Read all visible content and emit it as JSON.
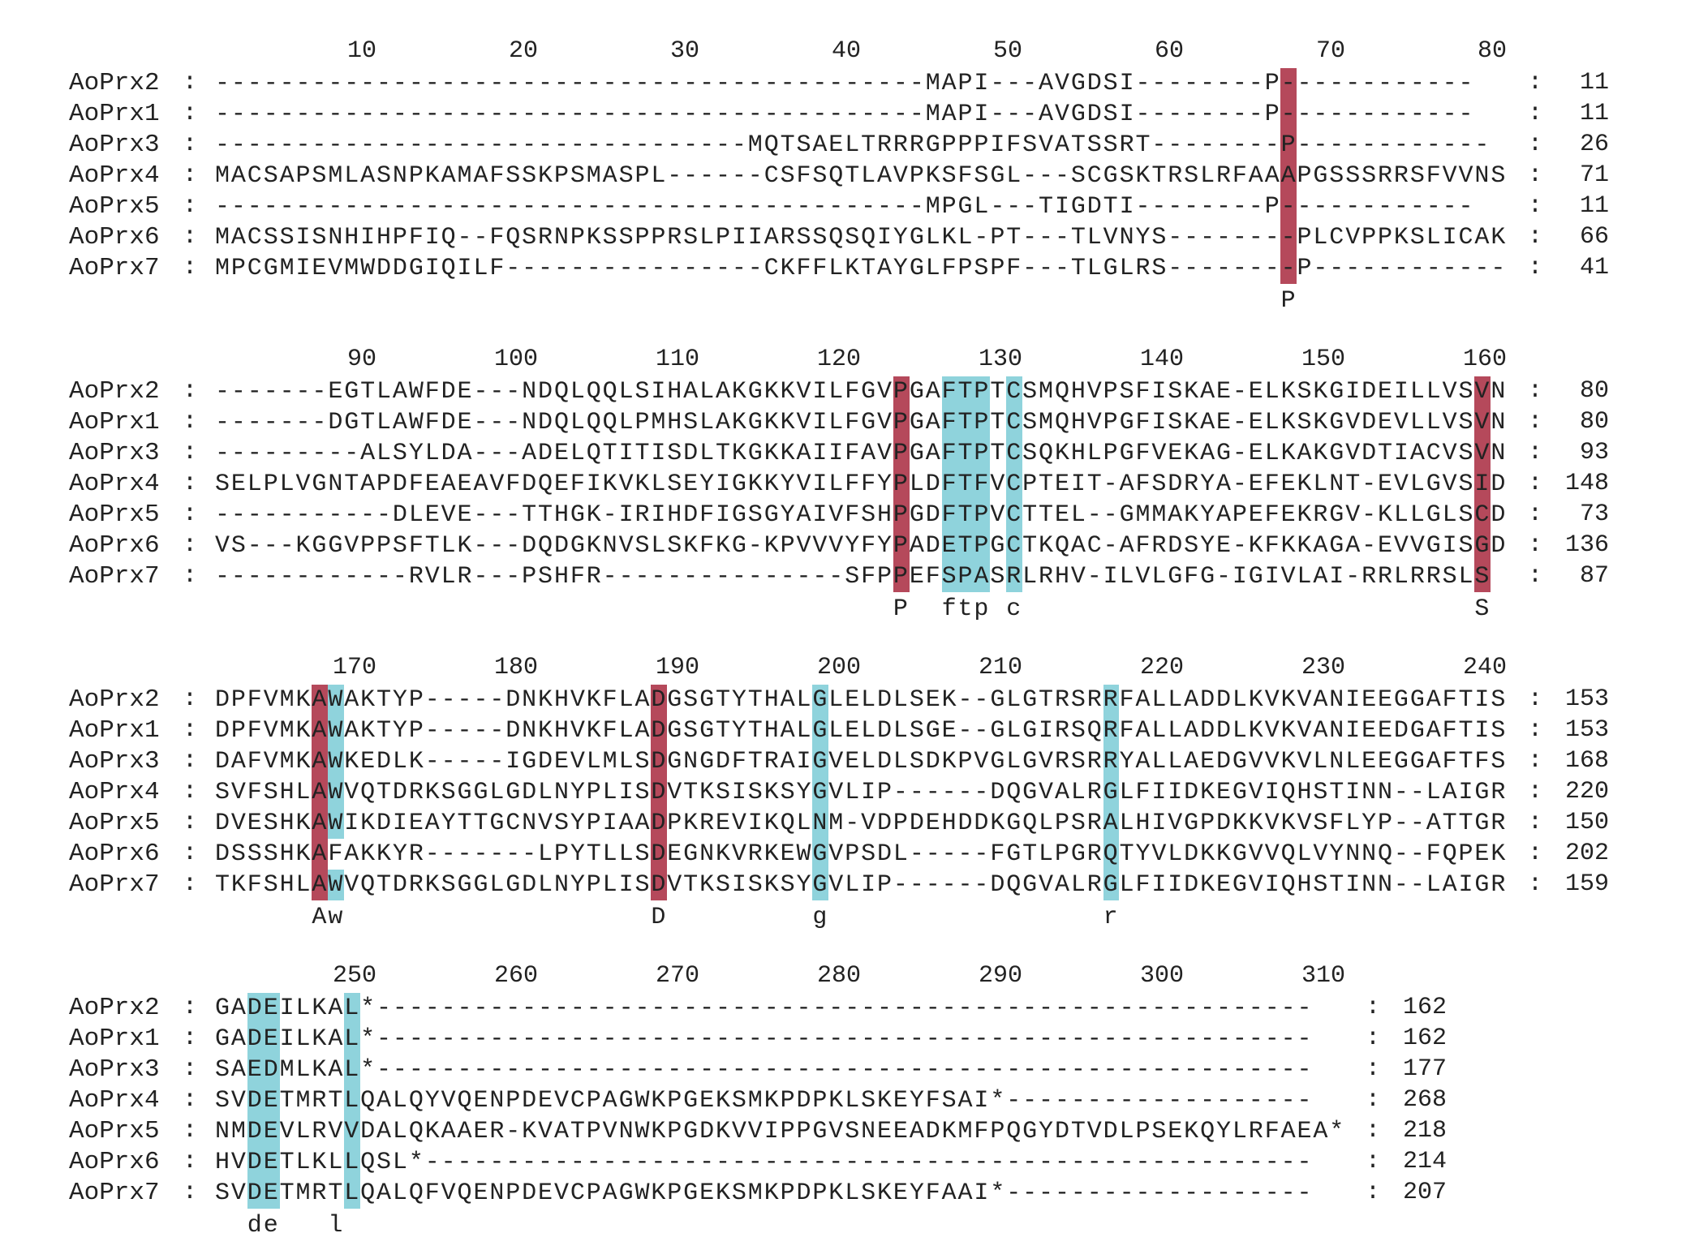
{
  "colors": {
    "conserved_full": "#b5495b",
    "conserved_partial": "#8fd3dc",
    "text": "#222222"
  },
  "blocks": [
    {
      "ruler": [
        "10",
        "20",
        "30",
        "40",
        "50",
        "60",
        "70",
        "80"
      ],
      "rows": [
        {
          "name": "AoPrx2",
          "seq": "--------------------------------------------MAPI---AVGDSI--------P------------",
          "count": "11"
        },
        {
          "name": "AoPrx1",
          "seq": "--------------------------------------------MAPI---AVGDSI--------P------------",
          "count": "11"
        },
        {
          "name": "AoPrx3",
          "seq": "---------------------------------MQTSAELTRRRGPPPIFSVATSSRT--------P------------",
          "count": "26"
        },
        {
          "name": "AoPrx4",
          "seq": "MACSAPSMLASNPKAMAFSSKPSMASPL------CSFSQTLAVPKSFSGL---SCGSKTRSLRFAAAPGSSSRRSFVVNS",
          "count": "71"
        },
        {
          "name": "AoPrx5",
          "seq": "--------------------------------------------MPGL---TIGDTI--------P------------",
          "count": "11"
        },
        {
          "name": "AoPrx6",
          "seq": "MACSSISNHIHPFIQ--FQSRNPKSSPPRSLPIIARSSQSQIYGLKL-PT---TLVNYS--------PLCVPPKSLICAK",
          "count": "66"
        },
        {
          "name": "AoPrx7",
          "seq": "MPCGMIEVMWDDGIQILF----------------CKFFLKTAYGLFPSPF---TLGLRS--------P------------",
          "count": "41"
        }
      ],
      "consensus": "                                                                  P",
      "col_full": [
        66
      ],
      "col_part": [],
      "cells_part": []
    },
    {
      "ruler": [
        "90",
        "100",
        "110",
        "120",
        "130",
        "140",
        "150",
        "160"
      ],
      "rows": [
        {
          "name": "AoPrx2",
          "seq": "-------EGTLAWFDE---NDQLQQLSIHALAKGKKVILFGVPGAFTPTCSMQHVPSFISKAE-ELKSKGIDEILLVSVN",
          "count": "80"
        },
        {
          "name": "AoPrx1",
          "seq": "-------DGTLAWFDE---NDQLQQLPMHSLAKGKKVILFGVPGAFTPTCSMQHVPGFISKAE-ELKSKGVDEVLLVSVN",
          "count": "80"
        },
        {
          "name": "AoPrx3",
          "seq": "---------ALSYLDA---ADELQTITISDLTKGKKAIIFAVPGAFTPTCSQKHLPGFVEKAG-ELKAKGVDTIACVSVN",
          "count": "93"
        },
        {
          "name": "AoPrx4",
          "seq": "SELPLVGNTAPDFEAEAVFDQEFIKVKLSEYIGKKYVILFFYPLDFTFVCPTEIT-AFSDRYA-EFEKLNT-EVLGVSID",
          "count": "148"
        },
        {
          "name": "AoPrx5",
          "seq": "-----------DLEVE---TTHGK-IRIHDFIGSGYAIVFSHPGDFTPVCTTEL--GMMAKYAPEFEKRGV-KLLGLSCD",
          "count": "73"
        },
        {
          "name": "AoPrx6",
          "seq": "VS---KGGVPPSFTLK---DQDGKNVSLSKFKG-KPVVVYFYPADETPGCTKQAC-AFRDSYE-KFKKAGA-EVVGISGD",
          "count": "136"
        },
        {
          "name": "AoPrx7",
          "seq": "------------RVLR---PSHFR---------------SFPPEFSPASRLRHV-ILVLGFG-IGIVLAI-RRLRRSLS",
          "count": "87"
        }
      ],
      "consensus": "                                          P  ftp c                            S",
      "col_full": [
        42,
        78
      ],
      "col_part": [
        45,
        46,
        47,
        49
      ],
      "cells_part": []
    },
    {
      "ruler": [
        "170",
        "180",
        "190",
        "200",
        "210",
        "220",
        "230",
        "240"
      ],
      "rows": [
        {
          "name": "AoPrx2",
          "seq": "DPFVMKAWAKTYP-----DNKHVKFLADGSGTYTHALGLELDLSEK--GLGTRSRRFALLADDLKVKVANIEEGGAFTIS",
          "count": "153"
        },
        {
          "name": "AoPrx1",
          "seq": "DPFVMKAWAKTYP-----DNKHVKFLADGSGTYTHALGLELDLSGE--GLGIRSQRFALLADDLKVKVANIEEDGAFTIS",
          "count": "153"
        },
        {
          "name": "AoPrx3",
          "seq": "DAFVMKAWKEDLK-----IGDEVLMLSDGNGDFTRAIGVELDLSDKPVGLGVRSRRYALLAEDGVVKVLNLEEGGAFTFS",
          "count": "168"
        },
        {
          "name": "AoPrx4",
          "seq": "SVFSHLAWVQTDRKSGGLGDLNYPLISDVTKSISKSYGVLIP------DQGVALRGLFIIDKEGVIQHSTINN--LAIGR",
          "count": "220"
        },
        {
          "name": "AoPrx5",
          "seq": "DVESHKAWIKDIEAYTTGCNVSYPIAADPKREVIKQLNM-VDPDEHDDKGQLPSRALHIVGPDKKVKVSFLYP--ATTGR",
          "count": "150"
        },
        {
          "name": "AoPrx6",
          "seq": "DSSSHKAFAKKYR-------LPYTLLSDEGNKVRKEWGVPSDL-----FGTLPGRQTYVLDKKGVVQLVYNNQ--FQPEK",
          "count": "202"
        },
        {
          "name": "AoPrx7",
          "seq": "TKFSHLAWVQTDRKSGGLGDLNYPLISDVTKSISKSYGVLIP------DQGVALRGLFIIDKEGVIQHSTINN--LAIGR",
          "count": "159"
        }
      ],
      "consensus": "      Aw                   D         g                 r",
      "col_full": [
        6,
        27
      ],
      "col_part": [
        37,
        55
      ],
      "cells_part": [
        [
          0,
          7
        ],
        [
          1,
          7
        ],
        [
          2,
          7
        ],
        [
          3,
          7
        ],
        [
          4,
          7
        ],
        [
          6,
          7
        ]
      ]
    },
    {
      "ruler": [
        "250",
        "260",
        "270",
        "280",
        "290",
        "300",
        "310"
      ],
      "rows": [
        {
          "name": "AoPrx2",
          "seq": "GADEILKAL*----------------------------------------------------------",
          "count": "162"
        },
        {
          "name": "AoPrx1",
          "seq": "GADEILKAL*----------------------------------------------------------",
          "count": "162"
        },
        {
          "name": "AoPrx3",
          "seq": "SAEDMLKAL*----------------------------------------------------------",
          "count": "177"
        },
        {
          "name": "AoPrx4",
          "seq": "SVDETMRTLQALQYVQENPDEVCPAGWKPGEKSMKPDPKLSKEYFSAI*-------------------",
          "count": "268"
        },
        {
          "name": "AoPrx5",
          "seq": "NMDEVLRVVDALQKAAER-KVATPVNWKPGDKVVIPPGVSNEEADKMFPQGYDTVDLPSEKQYLRFAEA*",
          "count": "218"
        },
        {
          "name": "AoPrx6",
          "seq": "HVDETLKLLQSL*-------------------------------------------------------",
          "count": "214"
        },
        {
          "name": "AoPrx7",
          "seq": "SVDETMRTLQALQFVQENPDEVCPAGWKPGEKSMKPDPKLSKEYFAAI*-------------------",
          "count": "207"
        }
      ],
      "consensus": "  de   l",
      "col_full": [],
      "col_part": [
        2,
        3,
        8
      ],
      "cells_part": []
    }
  ]
}
